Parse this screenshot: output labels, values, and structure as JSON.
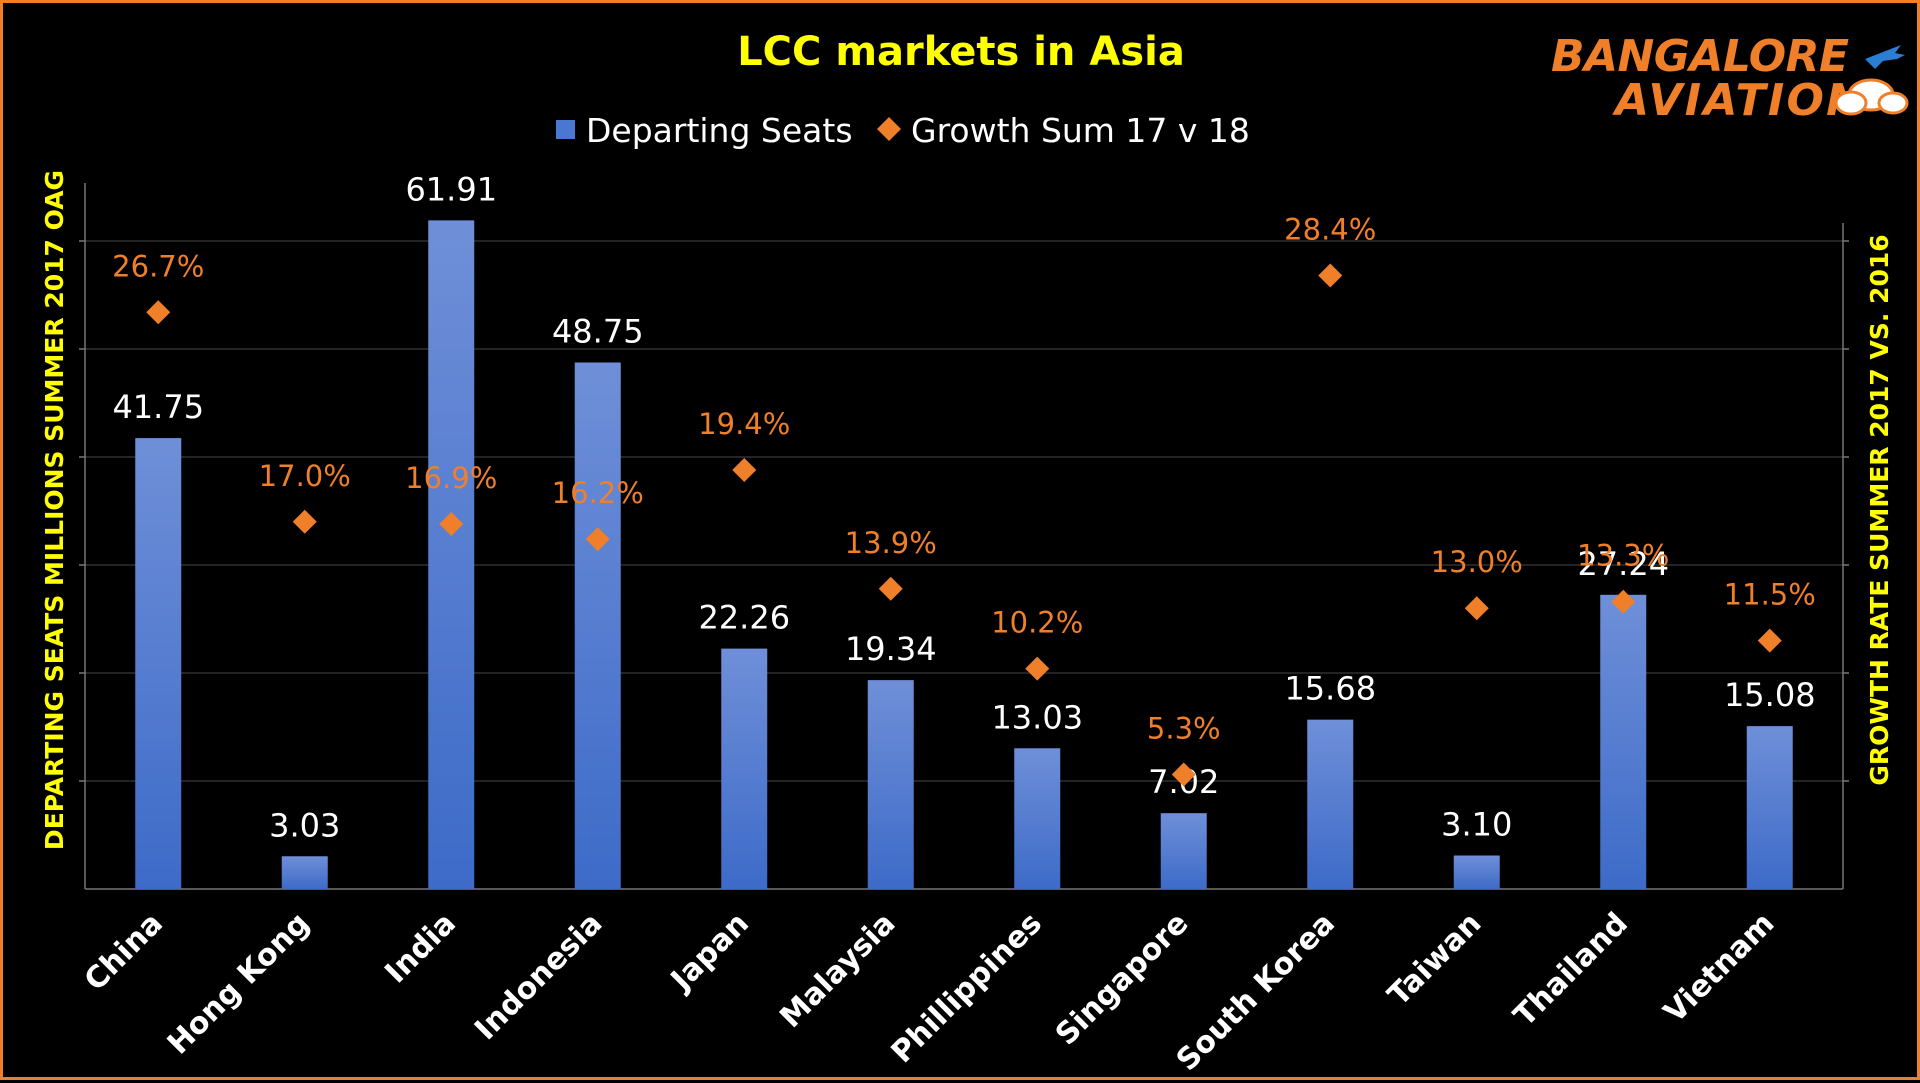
{
  "chart_data": {
    "type": "bar",
    "title": "LCC markets in Asia",
    "categories": [
      "China",
      "Hong Kong",
      "India",
      "Indonesia",
      "Japan",
      "Malaysia",
      "Phillippines",
      "Singapore",
      "South Korea",
      "Taiwan",
      "Thailand",
      "Vietnam"
    ],
    "series": [
      {
        "name": "Departing Seats",
        "type": "bar",
        "axis": "left",
        "color": "#4a78d0",
        "values": [
          41.75,
          3.03,
          61.91,
          48.75,
          22.26,
          19.34,
          13.03,
          7.02,
          15.68,
          3.1,
          27.24,
          15.08
        ],
        "labels": [
          "41.75",
          "3.03",
          "61.91",
          "48.75",
          "22.26",
          "19.34",
          "13.03",
          "7.02",
          "15.68",
          "3.10",
          "27.24",
          "15.08"
        ]
      },
      {
        "name": "Growth Sum 17 v 18",
        "type": "scatter",
        "marker": "diamond",
        "axis": "right",
        "color": "#f07f2a",
        "values": [
          26.7,
          17.0,
          16.9,
          16.2,
          19.4,
          13.9,
          10.2,
          5.3,
          28.4,
          13.0,
          13.3,
          11.5
        ],
        "labels": [
          "26.7%",
          "17.0%",
          "16.9%",
          "16.2%",
          "19.4%",
          "13.9%",
          "10.2%",
          "5.3%",
          "28.4%",
          "13.0%",
          "13.3%",
          "11.5%"
        ]
      }
    ],
    "ylabel": "DEPARTING SEATS MILLIONS SUMMER 2017 OAG",
    "y2label": "GROWTH RATE SUMMER 2017 VS. 2016",
    "ylim": [
      0,
      70
    ],
    "y2lim": [
      0,
      35
    ],
    "grid": true,
    "legend_position": "top-center",
    "colors": {
      "background": "#000000",
      "border": "#f07f2a",
      "title": "#ffff00",
      "axis_labels": "#ffff00",
      "text": "#ffffff",
      "gridline": "#3a3a3a"
    }
  },
  "logo": {
    "line1": "BANGALORE",
    "line2": "AVIATION",
    "color": "#f07f2a",
    "icon": "airplane-cloud-icon"
  }
}
